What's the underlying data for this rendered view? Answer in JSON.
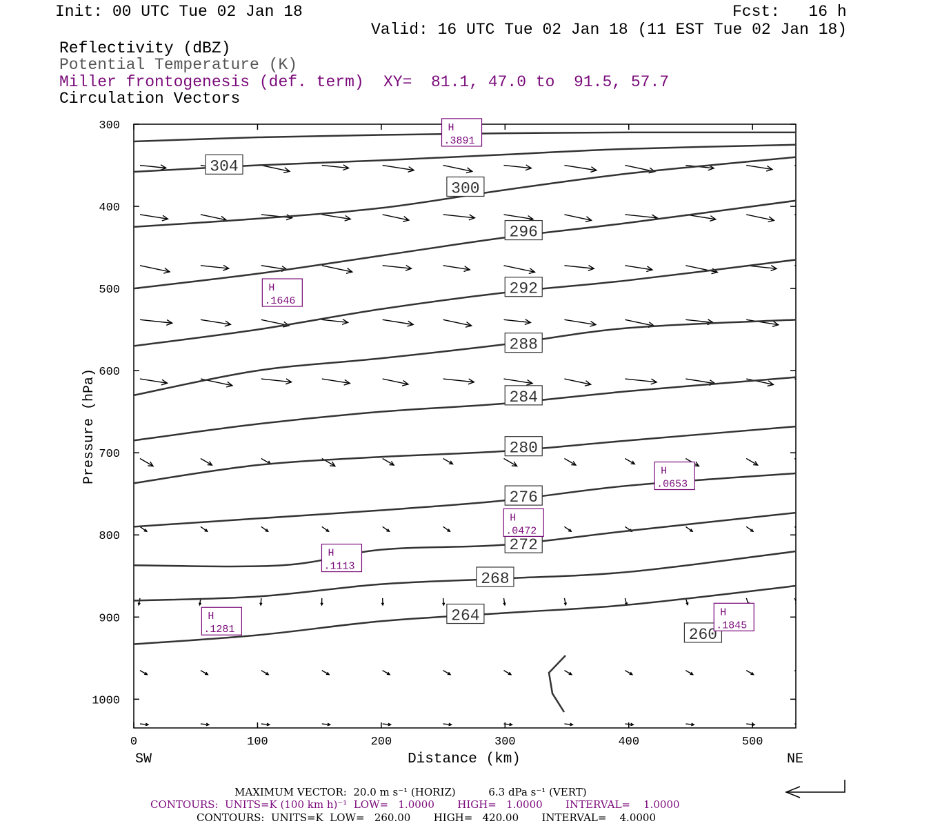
{
  "header": {
    "init": "Init: 00 UTC Tue 02 Jan 18",
    "fcst": "Fcst:   16 h",
    "valid": "Valid: 16 UTC Tue 02 Jan 18 (11 EST Tue 02 Jan 18)",
    "field1": "Reflectivity (dBZ)",
    "field2": "Potential Temperature (K)",
    "field3": "Miller frontogenesis (def. term)",
    "xy": "XY=  81.1, 47.0 to  91.5, 57.7",
    "field4": "Circulation Vectors"
  },
  "colors": {
    "purple": "#7a0a7a",
    "contour": "#333333",
    "gray": "#555555"
  },
  "chart_data": {
    "type": "contour",
    "xlabel": "Distance (km)",
    "ylabel": "Pressure (hPa)",
    "x_ticks": [
      "0",
      "100",
      "200",
      "300",
      "400",
      "500"
    ],
    "y_ticks": [
      "300",
      "400",
      "500",
      "600",
      "700",
      "800",
      "900",
      "1000"
    ],
    "xlim": [
      0,
      535
    ],
    "ylim": [
      300,
      1035
    ],
    "left_end_label": "SW",
    "right_end_label": "NE",
    "theta_contours": [
      {
        "label": "304",
        "x": [
          0,
          100,
          200,
          300,
          400,
          535
        ],
        "y": [
          321,
          316,
          313,
          311,
          310,
          310
        ],
        "lx": 73,
        "ly": 349
      },
      {
        "label": "300",
        "x": [
          0,
          100,
          200,
          300,
          400,
          535
        ],
        "y": [
          358,
          350,
          344,
          337,
          330,
          325
        ],
        "lx": 268,
        "ly": 376
      },
      {
        "label": "296",
        "x": [
          0,
          100,
          200,
          300,
          400,
          535
        ],
        "y": [
          425,
          415,
          402,
          380,
          360,
          340
        ],
        "lx": 315,
        "ly": 429
      },
      {
        "label": "292",
        "x": [
          0,
          100,
          200,
          300,
          400,
          535
        ],
        "y": [
          500,
          482,
          460,
          438,
          420,
          393
        ],
        "lx": 315,
        "ly": 498
      },
      {
        "label": "288",
        "x": [
          0,
          100,
          200,
          300,
          400,
          535
        ],
        "y": [
          570,
          550,
          525,
          505,
          490,
          465
        ],
        "lx": 315,
        "ly": 566
      },
      {
        "label": "284",
        "x": [
          0,
          100,
          200,
          300,
          400,
          535
        ],
        "y": [
          630,
          600,
          585,
          568,
          548,
          538
        ],
        "lx": 315,
        "ly": 630
      },
      {
        "label": "280",
        "x": [
          0,
          100,
          200,
          300,
          400,
          535
        ],
        "y": [
          685,
          665,
          650,
          640,
          625,
          608
        ],
        "lx": 315,
        "ly": 692
      },
      {
        "label": "276",
        "x": [
          0,
          100,
          200,
          300,
          400,
          535
        ],
        "y": [
          737,
          715,
          705,
          698,
          685,
          668
        ],
        "lx": 315,
        "ly": 752
      },
      {
        "label": "272",
        "x": [
          0,
          100,
          200,
          300,
          400,
          535
        ],
        "y": [
          790,
          780,
          770,
          758,
          740,
          725
        ],
        "lx": 315,
        "ly": 810
      },
      {
        "label": "268",
        "x": [
          0,
          120,
          200,
          300,
          400,
          535
        ],
        "y": [
          837,
          837,
          818,
          812,
          795,
          773
        ],
        "lx": 292,
        "ly": 851
      },
      {
        "label": "264",
        "x": [
          0,
          100,
          200,
          300,
          400,
          535
        ],
        "y": [
          880,
          875,
          860,
          853,
          845,
          820
        ],
        "lx": 268,
        "ly": 896
      },
      {
        "label": "260",
        "x": [
          0,
          100,
          200,
          300,
          400,
          535
        ],
        "y": [
          933,
          922,
          905,
          895,
          885,
          862
        ],
        "lx": 460,
        "ly": 919
      }
    ],
    "frontogenesis_maxima": [
      {
        "label": "H",
        "value": ".3891",
        "x": 265,
        "y": 310
      },
      {
        "label": "H",
        "value": ".1646",
        "x": 120,
        "y": 505
      },
      {
        "label": "H",
        "value": ".0653",
        "x": 437,
        "y": 728
      },
      {
        "label": "H",
        "value": ".0472",
        "x": 315,
        "y": 785
      },
      {
        "label": "H",
        "value": ".1113",
        "x": 168,
        "y": 828
      },
      {
        "label": "H",
        "value": ".1281",
        "x": 71,
        "y": 905
      },
      {
        "label": "H",
        "value": ".1845",
        "x": 485,
        "y": 900
      }
    ],
    "vector_rows_hPa": [
      350,
      410,
      472,
      538,
      610,
      707,
      790,
      877,
      965,
      1030
    ],
    "vector_cols_km": [
      5,
      54,
      103,
      152,
      201,
      250,
      299,
      348,
      397,
      446,
      495,
      534
    ]
  },
  "footer": {
    "max_vector": "MAXIMUM VECTOR:  20.0 m s⁻¹ (HORIZ)          6.3 dPa s⁻¹ (VERT)",
    "contours1": "CONTOURS:  UNITS=K (100 km h)⁻¹  LOW=   1.0000       HIGH=   1.0000       INTERVAL=    1.0000",
    "contours2": "CONTOURS:  UNITS=K  LOW=   260.00       HIGH=   420.00       INTERVAL=    4.0000"
  }
}
